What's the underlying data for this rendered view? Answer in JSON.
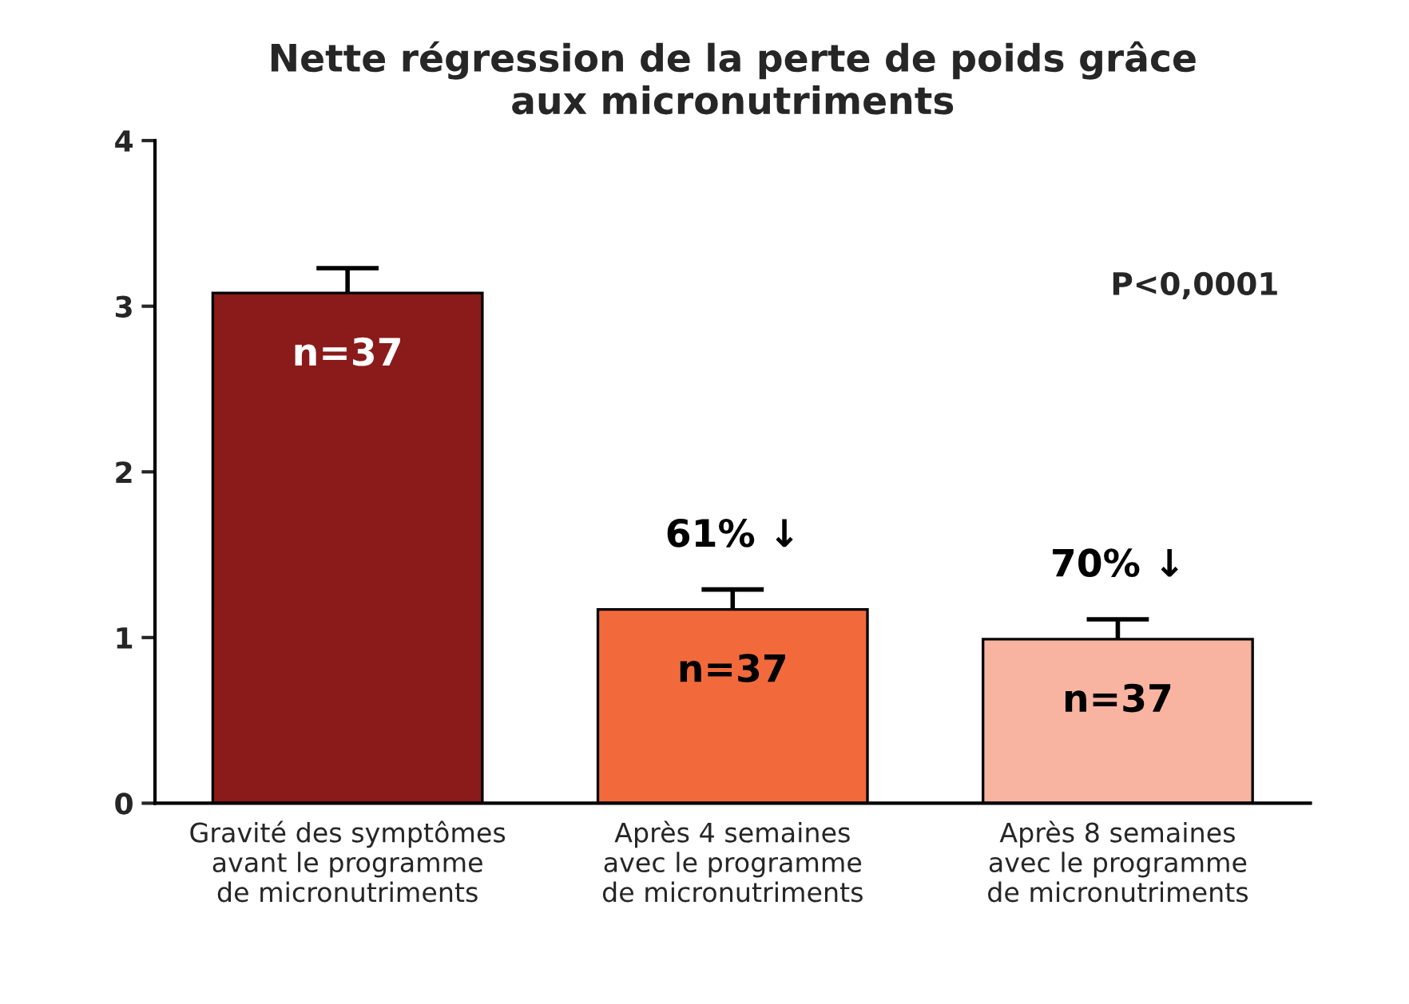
{
  "chart_data": {
    "type": "bar",
    "title": "Nette régression de la perte de poids grâce\naux micronutriments",
    "categories": [
      "Gravité des symptômes\navant le programme\nde micronutriments",
      "Après 4 semaines\navec le programme\nde micronutriments",
      "Après 8 semaines\navec le programme\nde micronutriments"
    ],
    "values": [
      3.08,
      1.17,
      0.99
    ],
    "errors": [
      0.15,
      0.12,
      0.12
    ],
    "colors": [
      "#8b1a1a",
      "#f26a3c",
      "#f8b4a0"
    ],
    "ylim": [
      0,
      4
    ],
    "yticks": [
      0,
      1,
      2,
      3,
      4
    ],
    "grid": false,
    "annotations": [
      "n=37",
      "n=37",
      "n=37",
      "61% ↓",
      "70% ↓",
      "P<0,0001"
    ]
  }
}
